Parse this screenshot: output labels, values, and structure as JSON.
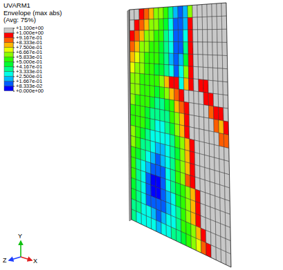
{
  "chart_data": {
    "type": "contour",
    "legend_title": [
      "UVARM1",
      "Envelope (max abs)",
      "(Avg: 75%)"
    ],
    "colorbar": {
      "range": [
        0,
        1.1
      ],
      "ticks": [
        {
          "value": 0,
          "label": "+0.000e+00"
        },
        {
          "value": 0.08333,
          "label": "+8.333e-02"
        },
        {
          "value": 0.1667,
          "label": "+1.667e-01"
        },
        {
          "value": 0.25,
          "label": "+2.500e-01"
        },
        {
          "value": 0.3333,
          "label": "+3.333e-01"
        },
        {
          "value": 0.4167,
          "label": "+4.167e-01"
        },
        {
          "value": 0.5,
          "label": "+5.000e-01"
        },
        {
          "value": 0.5833,
          "label": "+5.833e-01"
        },
        {
          "value": 0.6667,
          "label": "+6.667e-01"
        },
        {
          "value": 0.75,
          "label": "+7.500e-01"
        },
        {
          "value": 0.8333,
          "label": "+8.333e-01"
        },
        {
          "value": 0.9167,
          "label": "+9.167e-01"
        },
        {
          "value": 1.0,
          "label": "+1.000e+00"
        },
        {
          "value": 1.1,
          "label": "+1.100e+00"
        }
      ],
      "colors": [
        "#0000ff",
        "#005dff",
        "#00b9ff",
        "#00ffe8",
        "#00ff8b",
        "#00ff2e",
        "#2eff00",
        "#8bff00",
        "#e8ff00",
        "#ffb900",
        "#ff5d00",
        "#ff0000",
        "#c8c8c8"
      ]
    },
    "triad_labels": {
      "y": "Y",
      "z": "Z",
      "x": "X"
    },
    "cells": [
      [
        1.1,
        1.1,
        0.95,
        0.85,
        0.75,
        0.65,
        0.6,
        0.5,
        0.35,
        0.2,
        0.1,
        0.2,
        0.6,
        1.1,
        1.1,
        1.1,
        1.1,
        1.1,
        1.1,
        1.1
      ],
      [
        1.1,
        0.95,
        0.85,
        0.75,
        0.65,
        0.6,
        0.55,
        0.45,
        0.3,
        0.15,
        0.1,
        0.2,
        0.95,
        1.1,
        1.1,
        1.1,
        1.1,
        1.1,
        1.1,
        1.1
      ],
      [
        0.95,
        0.85,
        0.75,
        0.65,
        0.6,
        0.55,
        0.5,
        0.4,
        0.25,
        0.15,
        0.1,
        0.25,
        0.95,
        1.1,
        1.1,
        1.1,
        1.1,
        1.1,
        1.1,
        1.1
      ],
      [
        0.85,
        0.75,
        0.65,
        0.6,
        0.55,
        0.5,
        0.45,
        0.35,
        0.25,
        0.1,
        0.15,
        0.35,
        0.95,
        1.1,
        1.1,
        1.1,
        1.1,
        1.1,
        1.1,
        1.1
      ],
      [
        0.75,
        0.7,
        0.6,
        0.55,
        0.5,
        0.5,
        0.45,
        0.35,
        0.2,
        0.1,
        0.2,
        0.45,
        0.95,
        1.1,
        1.1,
        1.1,
        1.1,
        1.1,
        1.1,
        1.1
      ],
      [
        0.7,
        0.65,
        0.6,
        0.55,
        0.5,
        0.45,
        0.45,
        0.4,
        0.3,
        0.15,
        0.25,
        0.6,
        0.95,
        1.1,
        1.1,
        1.1,
        1.1,
        1.1,
        1.1,
        1.1
      ],
      [
        0.65,
        0.6,
        0.55,
        0.55,
        0.5,
        0.5,
        0.6,
        0.8,
        0.95,
        0.95,
        0.3,
        0.8,
        0.95,
        1.1,
        0.95,
        0.95,
        1.1,
        1.1,
        1.1,
        1.1
      ],
      [
        0.6,
        0.6,
        0.55,
        0.5,
        0.5,
        0.45,
        0.5,
        0.6,
        0.75,
        0.85,
        0.95,
        1.1,
        1.1,
        1.1,
        1.1,
        0.95,
        0.95,
        1.1,
        1.1,
        1.1
      ],
      [
        0.6,
        0.55,
        0.5,
        0.5,
        0.45,
        0.4,
        0.4,
        0.45,
        0.55,
        0.75,
        0.85,
        0.95,
        1.1,
        1.1,
        1.1,
        1.1,
        0.85,
        0.95,
        0.95,
        1.1
      ],
      [
        0.55,
        0.55,
        0.5,
        0.45,
        0.4,
        0.35,
        0.35,
        0.4,
        0.5,
        0.6,
        0.8,
        0.95,
        1.1,
        1.1,
        1.1,
        1.1,
        1.1,
        0.85,
        0.75,
        0.95
      ],
      [
        0.55,
        0.5,
        0.5,
        0.45,
        0.35,
        0.3,
        0.3,
        0.35,
        0.45,
        0.6,
        0.75,
        0.95,
        1.1,
        1.1,
        1.1,
        1.1,
        1.1,
        1.1,
        0.85,
        0.85
      ],
      [
        0.6,
        0.55,
        0.45,
        0.4,
        0.3,
        0.25,
        0.25,
        0.3,
        0.4,
        0.5,
        0.6,
        0.8,
        0.95,
        1.1,
        1.1,
        1.1,
        1.1,
        1.1,
        1.1,
        1.1
      ],
      [
        0.6,
        0.5,
        0.4,
        0.35,
        0.25,
        0.2,
        0.2,
        0.25,
        0.35,
        0.45,
        0.6,
        0.8,
        0.95,
        1.1,
        1.1,
        1.1,
        1.1,
        1.1,
        1.1,
        1.1
      ],
      [
        0.55,
        0.45,
        0.35,
        0.25,
        0.2,
        0.15,
        0.2,
        0.3,
        0.4,
        0.5,
        0.65,
        0.8,
        0.95,
        1.1,
        1.1,
        1.1,
        1.1,
        1.1,
        1.1,
        1.1
      ],
      [
        0.5,
        0.4,
        0.3,
        0.2,
        0.1,
        0.1,
        0.15,
        0.3,
        0.4,
        0.5,
        0.65,
        0.85,
        0.95,
        1.1,
        1.1,
        1.1,
        1.1,
        1.1,
        1.1,
        1.1
      ],
      [
        0.5,
        0.35,
        0.25,
        0.15,
        0.05,
        0.05,
        0.1,
        0.25,
        0.35,
        0.45,
        0.55,
        0.65,
        0.8,
        0.95,
        1.1,
        1.1,
        1.1,
        1.1,
        1.1,
        1.1
      ],
      [
        0.45,
        0.35,
        0.25,
        0.1,
        0.05,
        0.05,
        0.1,
        0.2,
        0.3,
        0.45,
        0.55,
        0.65,
        0.8,
        0.95,
        1.1,
        1.1,
        1.1,
        1.1,
        1.1,
        1.1
      ],
      [
        0.45,
        0.35,
        0.3,
        0.15,
        0.1,
        0.1,
        0.15,
        0.2,
        0.3,
        0.4,
        0.5,
        0.6,
        0.75,
        0.95,
        1.1,
        1.1,
        1.1,
        1.1,
        1.1,
        1.1
      ],
      [
        0.4,
        0.35,
        0.3,
        0.25,
        0.2,
        0.15,
        0.2,
        0.25,
        0.3,
        0.4,
        0.5,
        0.55,
        0.65,
        0.8,
        0.95,
        1.1,
        1.1,
        1.1,
        1.1,
        1.1
      ],
      [
        0.35,
        0.3,
        0.3,
        0.25,
        0.25,
        0.2,
        0.25,
        0.3,
        0.35,
        0.4,
        0.45,
        0.55,
        0.6,
        0.7,
        0.85,
        0.95,
        1.1,
        1.1,
        1.1,
        1.1
      ]
    ]
  }
}
